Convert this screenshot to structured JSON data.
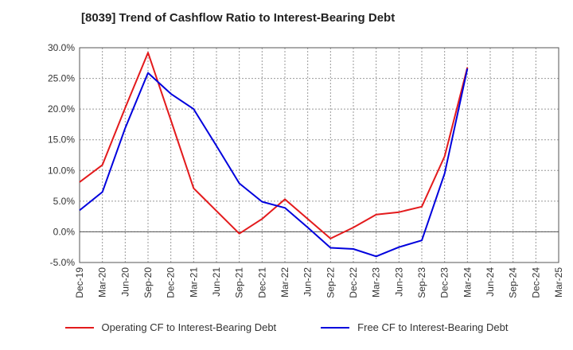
{
  "chart_data": {
    "type": "line",
    "title": "[8039]  Trend of Cashflow Ratio to Interest-Bearing Debt",
    "xlabel": "",
    "ylabel": "",
    "ylim": [
      -5,
      30
    ],
    "yticks": [
      "30.0%",
      "25.0%",
      "20.0%",
      "15.0%",
      "10.0%",
      "5.0%",
      "0.0%",
      "-5.0%"
    ],
    "ytick_values": [
      30,
      25,
      20,
      15,
      10,
      5,
      0,
      -5
    ],
    "categories": [
      "Dec-19",
      "Mar-20",
      "Jun-20",
      "Sep-20",
      "Dec-20",
      "Mar-21",
      "Jun-21",
      "Sep-21",
      "Dec-21",
      "Mar-22",
      "Jun-22",
      "Sep-22",
      "Dec-22",
      "Mar-23",
      "Jun-23",
      "Sep-23",
      "Dec-23",
      "Mar-24",
      "Jun-24",
      "Sep-24",
      "Dec-24",
      "Mar-25"
    ],
    "grid": true,
    "legend_position": "bottom",
    "series": [
      {
        "name": "Operating CF to Interest-Bearing Debt",
        "color": "#e31a1c",
        "values": [
          8.1,
          10.9,
          20.2,
          29.2,
          18.2,
          7.1,
          3.4,
          -0.3,
          2.1,
          5.3,
          2.1,
          -1.1,
          0.7,
          2.8,
          3.2,
          4.1,
          12.3,
          26.8,
          null,
          null,
          null,
          null
        ]
      },
      {
        "name": "Free CF to Interest-Bearing Debt",
        "color": "#0000dd",
        "values": [
          3.5,
          6.5,
          16.9,
          25.9,
          22.5,
          20.0,
          14.0,
          7.9,
          4.9,
          3.9,
          0.7,
          -2.6,
          -2.8,
          -4.0,
          -2.5,
          -1.4,
          9.5,
          26.6,
          null,
          null,
          null,
          null
        ]
      }
    ]
  }
}
